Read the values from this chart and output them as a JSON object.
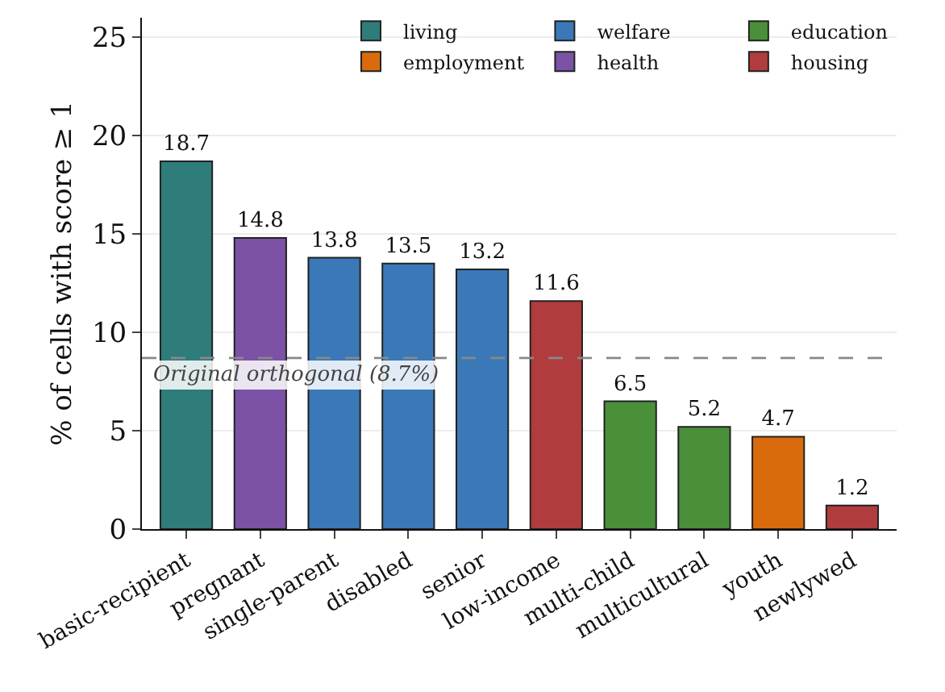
{
  "chart_data": {
    "type": "bar",
    "ylabel": "% of cells with score ≥ 1",
    "categories": [
      "basic-recipient",
      "pregnant",
      "single-parent",
      "disabled",
      "senior",
      "low-income",
      "multi-child",
      "multicultural",
      "youth",
      "newlywed"
    ],
    "series": [
      {
        "name": "living",
        "color": "#2e7d7a",
        "values": [
          18.7,
          null,
          null,
          null,
          null,
          null,
          null,
          null,
          null,
          null
        ]
      },
      {
        "name": "welfare",
        "color": "#3a78b8",
        "values": [
          null,
          null,
          13.8,
          13.5,
          13.2,
          null,
          null,
          null,
          null,
          null
        ]
      },
      {
        "name": "education",
        "color": "#4a8f3a",
        "values": [
          null,
          null,
          null,
          null,
          null,
          null,
          6.5,
          5.2,
          null,
          null
        ]
      },
      {
        "name": "employment",
        "color": "#d96b0c",
        "values": [
          null,
          null,
          null,
          null,
          null,
          null,
          null,
          null,
          4.7,
          null
        ]
      },
      {
        "name": "health",
        "color": "#7b52a5",
        "values": [
          null,
          14.8,
          null,
          null,
          null,
          null,
          null,
          null,
          null,
          null
        ]
      },
      {
        "name": "housing",
        "color": "#b03c3e",
        "values": [
          null,
          null,
          null,
          null,
          null,
          11.6,
          null,
          null,
          null,
          1.2
        ]
      }
    ],
    "ylim": [
      0,
      26
    ],
    "yticks": [
      0,
      5,
      10,
      15,
      20,
      25
    ],
    "grid": "y",
    "legend": "top right",
    "data_labels": true,
    "ref_lines": [
      {
        "axis": "y",
        "value": 8.7,
        "label": "Original orthogonal (8.7%)",
        "color": "#888888",
        "line_style": "dashed"
      }
    ]
  }
}
